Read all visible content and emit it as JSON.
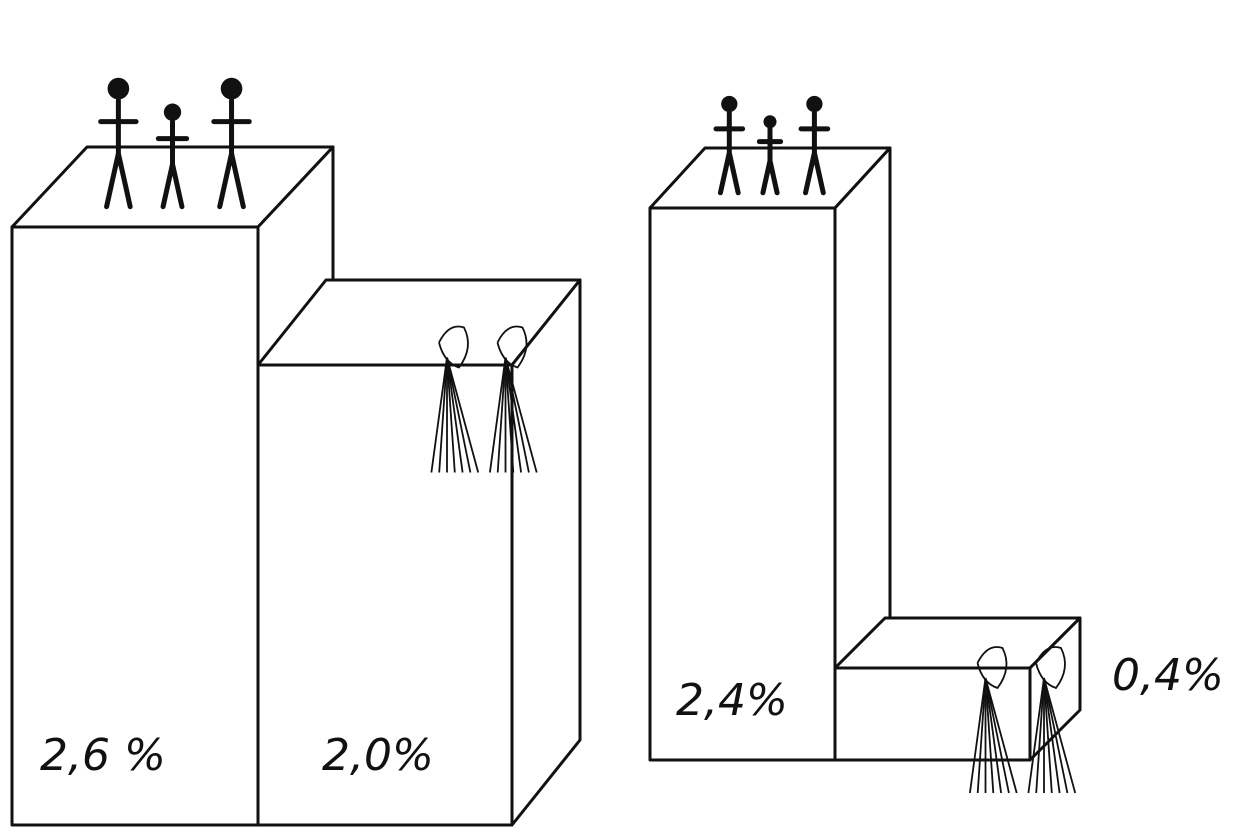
{
  "chart_data": {
    "type": "bar",
    "values": [
      2.6,
      2.0,
      2.4,
      0.4
    ],
    "value_labels": [
      "2,6 %",
      "2,0%",
      "2,4%",
      "0,4%"
    ],
    "color": "#ffffff"
  }
}
